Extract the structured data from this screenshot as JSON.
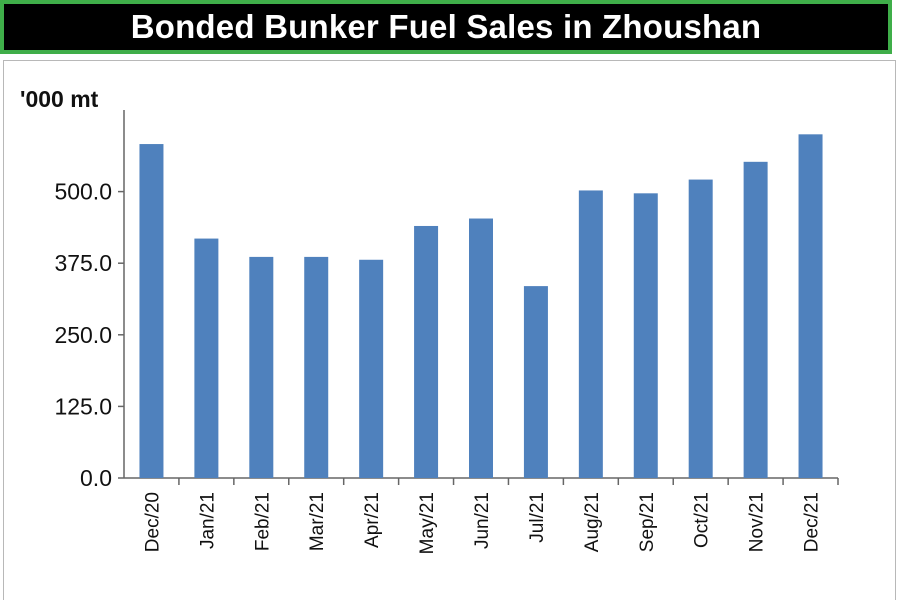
{
  "chart_data": {
    "type": "bar",
    "title": "Bonded Bunker Fuel Sales in Zhoushan",
    "unit_label": "'000 mt",
    "categories": [
      "Dec/20",
      "Jan/21",
      "Feb/21",
      "Mar/21",
      "Apr/21",
      "May/21",
      "Jun/21",
      "Jul/21",
      "Aug/21",
      "Sep/21",
      "Oct/21",
      "Nov/21",
      "Dec/21"
    ],
    "values": [
      583,
      418,
      386,
      386,
      381,
      440,
      453,
      335,
      502,
      497,
      521,
      552,
      600
    ],
    "yticks": [
      0,
      125,
      250,
      375,
      500
    ],
    "ytick_labels": [
      "0.0",
      "125.0",
      "250.0",
      "375.0",
      "500.0"
    ],
    "ylim": [
      0,
      625
    ],
    "bar_color": "#4f81bd",
    "grid": false,
    "legend": "none"
  }
}
